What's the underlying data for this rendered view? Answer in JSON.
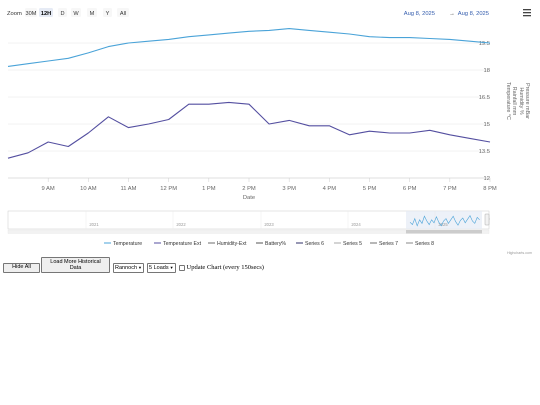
{
  "zoom": {
    "label": "Zoom",
    "buttons": [
      "30M",
      "12H",
      "D",
      "W",
      "M",
      "Y",
      "All"
    ],
    "selected": "12H"
  },
  "range": {
    "from": "Aug 8, 2025",
    "separator": "→",
    "to": "Aug 8, 2025"
  },
  "menu_icon": "hamburger-menu-icon",
  "credits": "Highcharts.com",
  "chart_data": {
    "type": "line",
    "xlabel": "Date",
    "x_ticks": [
      "9 AM",
      "10 AM",
      "11 AM",
      "12 PM",
      "1 PM",
      "2 PM",
      "3 PM",
      "4 PM",
      "5 PM",
      "6 PM",
      "7 PM",
      "8 PM"
    ],
    "x_range": [
      "8:00 AM",
      "8:00 PM"
    ],
    "y_axis": {
      "ylabel": "Temperature °C",
      "ticks": [
        "12",
        "13.5",
        "15",
        "16.5",
        "18",
        "19.5"
      ],
      "ylim": [
        12,
        20.5
      ]
    },
    "right_axis_titles": [
      "Rainfall mm",
      "Humidity %",
      "Pressure mBar"
    ],
    "legend_position": "bottom",
    "series": [
      {
        "name": "Temperature",
        "color": "#4aa3d8",
        "x": [
          8.0,
          8.5,
          9.0,
          9.5,
          10.0,
          10.5,
          11.0,
          11.5,
          12.0,
          12.5,
          13.0,
          13.5,
          14.0,
          14.5,
          15.0,
          15.5,
          16.0,
          16.5,
          17.0,
          17.5,
          18.0,
          18.5,
          19.0,
          19.5,
          20.0
        ],
        "values": [
          18.2,
          18.35,
          18.5,
          18.65,
          18.95,
          19.3,
          19.5,
          19.6,
          19.7,
          19.85,
          19.95,
          20.05,
          20.15,
          20.2,
          20.3,
          20.2,
          20.1,
          20.0,
          19.85,
          19.8,
          19.8,
          19.75,
          19.7,
          19.6,
          19.5
        ]
      },
      {
        "name": "Temperature Ext",
        "color": "#544fa0",
        "x": [
          8.0,
          8.5,
          9.0,
          9.5,
          10.0,
          10.5,
          11.0,
          11.5,
          12.0,
          12.5,
          13.0,
          13.5,
          14.0,
          14.5,
          15.0,
          15.5,
          16.0,
          16.5,
          17.0,
          17.5,
          18.0,
          18.5,
          19.0,
          19.5,
          20.0
        ],
        "values": [
          13.1,
          13.4,
          14.0,
          13.75,
          14.5,
          15.4,
          14.8,
          15.0,
          15.25,
          16.1,
          16.1,
          16.2,
          16.1,
          15.0,
          15.2,
          14.9,
          14.9,
          14.4,
          14.6,
          14.5,
          14.5,
          14.65,
          14.4,
          14.2,
          14.0
        ]
      }
    ],
    "navigator": {
      "years": [
        "2021",
        "2022",
        "2023",
        "2024",
        "2025"
      ],
      "scroll_label": "[]"
    }
  },
  "legend": [
    {
      "name": "Temperature",
      "color": "#4aa3d8"
    },
    {
      "name": "Temperature Ext",
      "color": "#544fa0"
    },
    {
      "name": "Humidity-Ext",
      "color": "#6e6e6e"
    },
    {
      "name": "Battery%",
      "color": "#555555"
    },
    {
      "name": "Series 6",
      "color": "#2f2f6a"
    },
    {
      "name": "Series 5",
      "color": "#aaaaaa"
    },
    {
      "name": "Series 7",
      "color": "#6f6f6f"
    },
    {
      "name": "Series 8",
      "color": "#888888"
    }
  ],
  "controls": {
    "hide_all": "Hide All",
    "load_more": "Load More Historical Data",
    "location_select": "Rannoch",
    "loads_select": "5 Loads",
    "update_label": "Update Chart (every 150secs)"
  }
}
